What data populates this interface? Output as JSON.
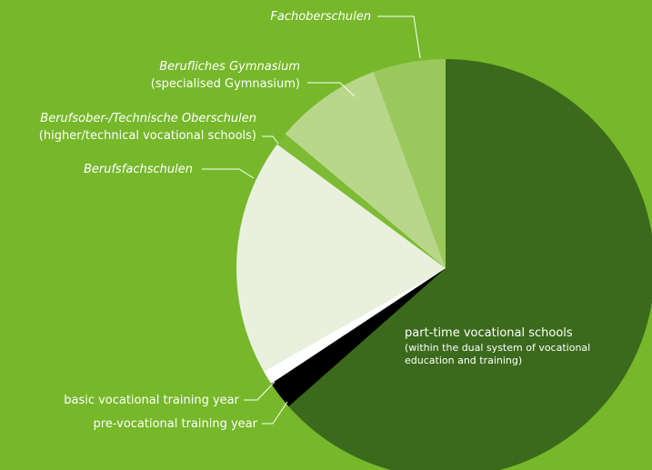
{
  "chart_data": {
    "type": "pie",
    "categories": [
      "part-time vocational schools",
      "pre-vocational training year",
      "basic vocational training year",
      "Berufsfachschulen",
      "Berufsober-/Technische Oberschulen",
      "Berufliches Gymnasium",
      "Fachoberschulen"
    ],
    "sublabels": [
      "(within the dual system of vocational education and training)",
      null,
      null,
      null,
      "(higher/technical vocational schools)",
      "(specialised Gymnasium)",
      null
    ],
    "values": [
      63.5,
      2.2,
      1.1,
      18.3,
      1.0,
      8.3,
      5.6
    ],
    "colors": [
      "#3b6a1c",
      "#000000",
      "#ffffff",
      "#e9f1de",
      "#7cbb33",
      "#b9d78b",
      "#9ac85c"
    ]
  }
}
